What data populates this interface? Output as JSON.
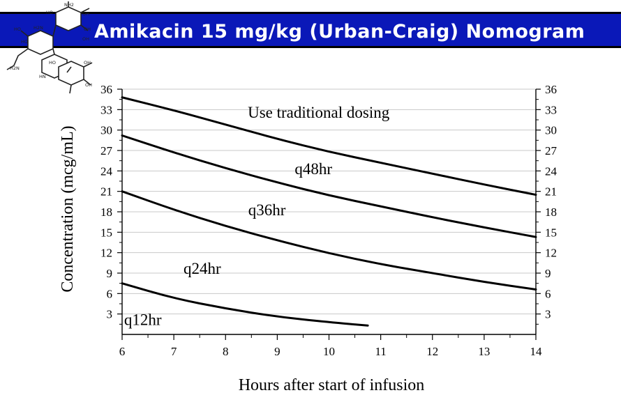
{
  "header": {
    "title": "Amikacin 15 mg/kg (Urban-Craig) Nomogram"
  },
  "logo": {
    "icon": "aminoglycoside-structure-icon",
    "atom_labels": [
      "HO",
      "NH2",
      "OH",
      "HO",
      "H2N",
      "OH",
      "HO",
      "OH",
      "HN",
      "H2N",
      "HO",
      "OH",
      "OH"
    ]
  },
  "colors": {
    "banner": "#0a18b8",
    "banner_text": "#ffffff",
    "line": "#000000",
    "grid": "#c8c8c8"
  },
  "chart_data": {
    "type": "line",
    "xlabel": "Hours after start of infusion",
    "ylabel": "Concentration (mcg/mL)",
    "xlim": [
      6,
      14
    ],
    "ylim": [
      0,
      36
    ],
    "xticks": [
      6,
      7,
      8,
      9,
      10,
      11,
      12,
      13,
      14
    ],
    "yticks": [
      3,
      6,
      9,
      12,
      15,
      18,
      21,
      24,
      27,
      30,
      33,
      36
    ],
    "grid": true,
    "right_axis": true,
    "series": [
      {
        "x": [
          6,
          7,
          8,
          9,
          10,
          11,
          12,
          13,
          14
        ],
        "y": [
          34.8,
          32.9,
          30.8,
          28.7,
          26.8,
          25.2,
          23.6,
          22.0,
          20.5
        ]
      },
      {
        "x": [
          6,
          7,
          8,
          9,
          10,
          11,
          12,
          13,
          14
        ],
        "y": [
          29.2,
          26.7,
          24.4,
          22.3,
          20.4,
          18.8,
          17.2,
          15.7,
          14.3
        ]
      },
      {
        "x": [
          6,
          7,
          8,
          9,
          10,
          11,
          12,
          13,
          14
        ],
        "y": [
          21.0,
          18.3,
          15.9,
          13.8,
          11.9,
          10.3,
          9.0,
          7.7,
          6.6
        ]
      },
      {
        "x": [
          6,
          7,
          8,
          9,
          10,
          10.75
        ],
        "y": [
          7.5,
          5.3,
          3.8,
          2.6,
          1.8,
          1.3
        ]
      }
    ],
    "annotations": [
      {
        "text": "Use traditional dosing",
        "x": 9.8,
        "y": 31.8
      },
      {
        "text": "q48hr",
        "x": 9.7,
        "y": 23.5
      },
      {
        "text": "q36hr",
        "x": 8.8,
        "y": 17.5
      },
      {
        "text": "q24hr",
        "x": 7.55,
        "y": 8.9
      },
      {
        "text": "q12hr",
        "x": 6.4,
        "y": 1.4
      }
    ]
  }
}
